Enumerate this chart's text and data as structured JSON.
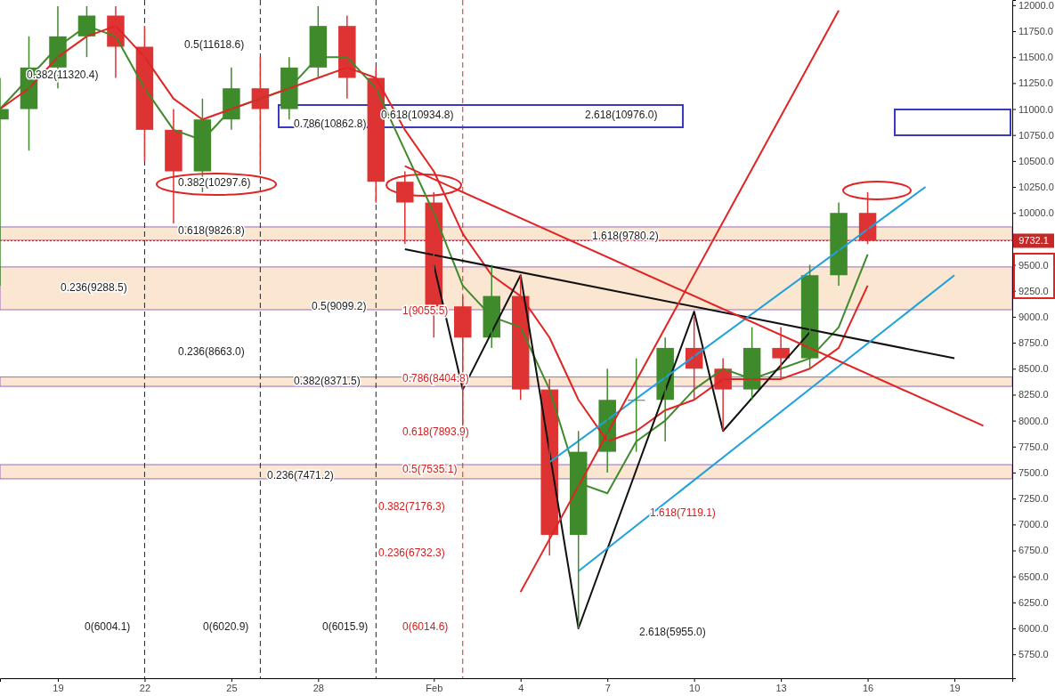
{
  "chart_data": {
    "type": "candlestick",
    "x": [
      "--01-17",
      "--01-18",
      "--01-19",
      "--01-20",
      "--01-21",
      "--01-22",
      "--01-23",
      "--01-24",
      "--01-25",
      "--01-26",
      "--01-27",
      "--01-28",
      "--01-29",
      "--01-30",
      "--01-31",
      "--02-01",
      "--02-02",
      "--02-03",
      "--02-04",
      "--02-05",
      "--02-06",
      "--02-07",
      "--02-08",
      "--02-09",
      "--02-10",
      "--02-11",
      "--02-12",
      "--02-13",
      "--02-14",
      "--02-15",
      "--02-16"
    ],
    "ohlc": [
      [
        10900,
        11300,
        9300,
        11000
      ],
      [
        11000,
        11700,
        10600,
        11400
      ],
      [
        11400,
        11990,
        11200,
        11700
      ],
      [
        11700,
        11990,
        11500,
        11900
      ],
      [
        11900,
        11990,
        11300,
        11600
      ],
      [
        11600,
        11800,
        10500,
        10800
      ],
      [
        10800,
        11000,
        9900,
        10400
      ],
      [
        10400,
        11100,
        10200,
        10900
      ],
      [
        10900,
        11400,
        10800,
        11200
      ],
      [
        11200,
        11500,
        10400,
        11000
      ],
      [
        11000,
        11500,
        10900,
        11400
      ],
      [
        11400,
        11990,
        11300,
        11800
      ],
      [
        11800,
        11900,
        11100,
        11300
      ],
      [
        11300,
        11400,
        10100,
        10300
      ],
      [
        10300,
        10400,
        9700,
        10100
      ],
      [
        10100,
        10200,
        8800,
        9100
      ],
      [
        9100,
        9200,
        7950,
        8800
      ],
      [
        8800,
        9500,
        8700,
        9200
      ],
      [
        9200,
        9400,
        8200,
        8300
      ],
      [
        8300,
        8400,
        6700,
        6900
      ],
      [
        6900,
        7900,
        6000,
        7700
      ],
      [
        7700,
        8500,
        7500,
        8200
      ],
      [
        8200,
        8600,
        7700,
        8200
      ],
      [
        8200,
        8800,
        7800,
        8700
      ],
      [
        8700,
        9000,
        8200,
        8500
      ],
      [
        8500,
        8600,
        7900,
        8300
      ],
      [
        8300,
        8900,
        8200,
        8700
      ],
      [
        8700,
        8900,
        8400,
        8600
      ],
      [
        8600,
        9500,
        8500,
        9400
      ],
      [
        9400,
        10100,
        9300,
        10000
      ],
      [
        10000,
        10200,
        9700,
        9732.1
      ]
    ],
    "series": [
      {
        "type": "line",
        "color": "#3f8a2a",
        "x": [
          "--01-17",
          "--01-18",
          "--01-19",
          "--01-20",
          "--01-21",
          "--01-22",
          "--01-23",
          "--01-24",
          "--01-25",
          "--01-26",
          "--01-27",
          "--01-28",
          "--01-29",
          "--01-30",
          "--01-31",
          "--02-01",
          "--02-02",
          "--02-03",
          "--02-04",
          "--02-05",
          "--02-06",
          "--02-07",
          "--02-08",
          "--02-09",
          "--02-10",
          "--02-11",
          "--02-12",
          "--02-13",
          "--02-14",
          "--02-15",
          "--02-16"
        ],
        "values": [
          11000,
          11300,
          11600,
          11800,
          11700,
          11200,
          10800,
          10700,
          11000,
          11100,
          11200,
          11500,
          11500,
          11200,
          10600,
          10000,
          9300,
          9000,
          8900,
          8300,
          7400,
          7300,
          7800,
          8000,
          8300,
          8500,
          8400,
          8500,
          8600,
          8900,
          9600
        ]
      },
      {
        "type": "line",
        "color": "#e02424",
        "x": [
          "--01-17",
          "--01-18",
          "--01-19",
          "--01-20",
          "--01-21",
          "--01-22",
          "--01-23",
          "--01-24",
          "--01-25",
          "--01-26",
          "--01-27",
          "--01-28",
          "--01-29",
          "--01-30",
          "--01-31",
          "--02-01",
          "--02-02",
          "--02-03",
          "--02-04",
          "--02-05",
          "--02-06",
          "--02-07",
          "--02-08",
          "--02-09",
          "--02-10",
          "--02-11",
          "--02-12",
          "--02-13",
          "--02-14",
          "--02-15",
          "--02-16"
        ],
        "values": [
          11000,
          11200,
          11500,
          11700,
          11800,
          11500,
          11100,
          10900,
          11000,
          11100,
          11200,
          11300,
          11400,
          11300,
          10800,
          10400,
          9800,
          9400,
          9200,
          8800,
          8200,
          7800,
          7900,
          8100,
          8200,
          8400,
          8400,
          8400,
          8500,
          8700,
          9300
        ]
      },
      {
        "type": "line",
        "color": "#111111",
        "x": [
          "--02-01",
          "--02-02",
          "--02-04",
          "--02-06",
          "--02-10",
          "--02-11",
          "--02-14"
        ],
        "values": [
          9500,
          8300,
          9400,
          6000,
          9050,
          7900,
          8850
        ]
      },
      {
        "type": "line",
        "color": "#111111",
        "x": [
          "--01-31",
          "--02-19"
        ],
        "values": [
          9650,
          8600
        ]
      },
      {
        "type": "line",
        "color": "#1ea0dc",
        "x": [
          "--02-05",
          "--02-18"
        ],
        "values": [
          7600,
          10250
        ]
      },
      {
        "type": "line",
        "color": "#1ea0dc",
        "x": [
          "--02-06",
          "--02-19"
        ],
        "values": [
          6550,
          9400
        ]
      },
      {
        "type": "line",
        "color": "#e02424",
        "x": [
          "--02-04",
          "--02-15"
        ],
        "values": [
          6350,
          11950
        ]
      },
      {
        "type": "line",
        "color": "#e02424",
        "x": [
          "--01-31",
          "--02-20"
        ],
        "values": [
          10450,
          7950
        ]
      }
    ],
    "xlim": [
      "--01-17",
      "--02-21"
    ],
    "xticks": [
      {
        "value": "--01-19",
        "label": "19"
      },
      {
        "value": "--01-22",
        "label": "22"
      },
      {
        "value": "--01-25",
        "label": "25"
      },
      {
        "value": "--01-28",
        "label": "28"
      },
      {
        "value": "--02-01",
        "label": "Feb"
      },
      {
        "value": "--02-04",
        "label": "4"
      },
      {
        "value": "--02-07",
        "label": "7"
      },
      {
        "value": "--02-10",
        "label": "10"
      },
      {
        "value": "--02-13",
        "label": "13"
      },
      {
        "value": "--02-16",
        "label": "16"
      },
      {
        "value": "--02-19",
        "label": "19"
      }
    ],
    "ylim": [
      5520,
      12050
    ],
    "yticks": [
      {
        "value": 5750,
        "label": "5750.0"
      },
      {
        "value": 6000,
        "label": "6000.0"
      },
      {
        "value": 6250,
        "label": "6250.0"
      },
      {
        "value": 6500,
        "label": "6500.0"
      },
      {
        "value": 6750,
        "label": "6750.0"
      },
      {
        "value": 7000,
        "label": "7000.0"
      },
      {
        "value": 7250,
        "label": "7250.0"
      },
      {
        "value": 7500,
        "label": "7500.0"
      },
      {
        "value": 7750,
        "label": "7750.0"
      },
      {
        "value": 8000,
        "label": "8000.0"
      },
      {
        "value": 8250,
        "label": "8250.0"
      },
      {
        "value": 8500,
        "label": "8500.0"
      },
      {
        "value": 8750,
        "label": "8750.0"
      },
      {
        "value": 9000,
        "label": "9000.0"
      },
      {
        "value": 9250,
        "label": "9250.0"
      },
      {
        "value": 9500,
        "label": "9500.0"
      },
      {
        "value": 10000,
        "label": "10000.0"
      },
      {
        "value": 10250,
        "label": "10250.0"
      },
      {
        "value": 10500,
        "label": "10500.0"
      },
      {
        "value": 10750,
        "label": "10750.0"
      },
      {
        "value": 11000,
        "label": "11000.0"
      },
      {
        "value": 11250,
        "label": "11250.0"
      },
      {
        "value": 11500,
        "label": "11500.0"
      },
      {
        "value": 11750,
        "label": "11750.0"
      },
      {
        "value": 12000,
        "label": "12000.0"
      }
    ],
    "ref_lines": [
      {
        "axis": "y",
        "value": 9732.1,
        "label": "9732.1",
        "color": "#c62828",
        "line_style": "dotted"
      },
      {
        "axis": "x",
        "value": "--01-22",
        "color": "#222222",
        "line_style": "dashed"
      },
      {
        "axis": "x",
        "value": "--01-26",
        "color": "#222222",
        "line_style": "dashed"
      },
      {
        "axis": "x",
        "value": "--01-30",
        "color": "#222222",
        "line_style": "dashed"
      },
      {
        "axis": "x",
        "value": "--02-02",
        "color": "#e02424",
        "line_style": "dashed"
      }
    ],
    "bands": [
      {
        "axis": "y",
        "from": 9737,
        "to": 9865,
        "color": "#fbe6d2"
      },
      {
        "axis": "y",
        "from": 9068,
        "to": 9480,
        "color": "#fbe6d2"
      },
      {
        "axis": "y",
        "from": 8330,
        "to": 8420,
        "color": "#fbe6d2"
      },
      {
        "axis": "y",
        "from": 7440,
        "to": 7576,
        "color": "#fbe6d2"
      }
    ],
    "annotations": [
      "0.5(11618.6)",
      "0.382(11320.4)",
      "0.786(10862.8)",
      "0.618(10934.8)",
      "2.618(10976.0)",
      "0.382(10297.6)",
      "0.618(9826.8)",
      "1.618(9780.2)",
      "0.236(9288.5)",
      "0.5(9099.2)",
      "1(9055.5)",
      "0.236(8663.0)",
      "0.382(8371.5)",
      "0.786(8404.8)",
      "0.618(7893.9)",
      "0.236(7471.2)",
      "0.5(7535.1)",
      "0.382(7176.3)",
      "1.618(7119.1)",
      "0.236(6732.3)",
      "0(6004.1)",
      "0(6020.9)",
      "0(6015.9)",
      "0(6014.6)",
      "2.618(5955.0)"
    ],
    "grid": false
  }
}
